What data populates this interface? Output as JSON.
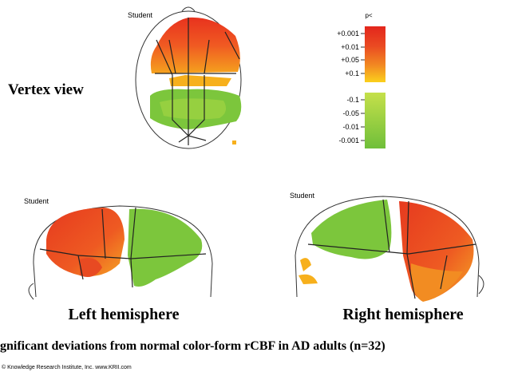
{
  "top_panel": {
    "label": "Student",
    "view_title": "Vertex view"
  },
  "legend": {
    "title": "p<",
    "labels": [
      "+0.001",
      "+0.01",
      "+0.05",
      "+0.1",
      "-0.1",
      "-0.05",
      "-0.01",
      "-0.001"
    ]
  },
  "left_panel": {
    "label": "Student",
    "caption": "Left hemisphere"
  },
  "right_panel": {
    "label": "Student",
    "caption": "Right hemisphere"
  },
  "figure_caption": "gnificant deviations from normal color-form rCBF in AD adults (n=32)",
  "copyright": "© Knowledge Research Institute, Inc. www.KRII.com"
}
